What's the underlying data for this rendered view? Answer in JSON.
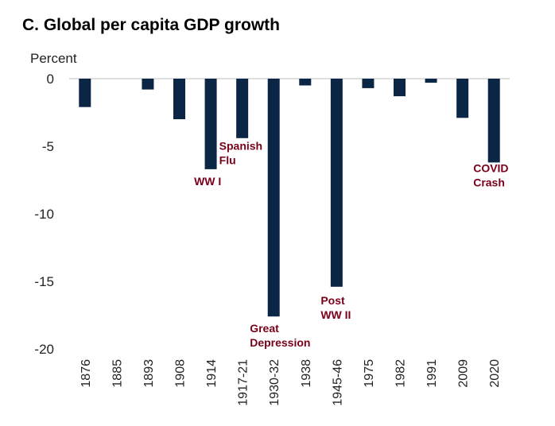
{
  "chart_data": {
    "type": "bar",
    "title": "C. Global per capita GDP growth",
    "ylabel": "Percent",
    "xlabel": "",
    "ylim": [
      -20,
      0
    ],
    "yticks": [
      0,
      -5,
      -10,
      -15,
      -20
    ],
    "grid": false,
    "categories": [
      "1876",
      "1885",
      "1893",
      "1908",
      "1914",
      "1917-21",
      "1930-32",
      "1938",
      "1945-46",
      "1975",
      "1982",
      "1991",
      "2009",
      "2020"
    ],
    "values": [
      -2.1,
      0,
      -0.8,
      -3.0,
      -6.7,
      -4.4,
      -17.6,
      -0.5,
      -15.4,
      -0.7,
      -1.3,
      -0.3,
      -2.9,
      -6.2
    ],
    "bar_color": "#0b2545",
    "annotation_color": "#7a0019",
    "annotations": [
      {
        "category": "1914",
        "lines": [
          "WW I"
        ]
      },
      {
        "category": "1917-21",
        "lines": [
          "Spanish",
          "Flu"
        ]
      },
      {
        "category": "1930-32",
        "lines": [
          "Great",
          "Depression"
        ]
      },
      {
        "category": "1945-46",
        "lines": [
          "Post",
          "WW II"
        ]
      },
      {
        "category": "2020",
        "lines": [
          "COVID",
          "Crash"
        ]
      }
    ]
  }
}
